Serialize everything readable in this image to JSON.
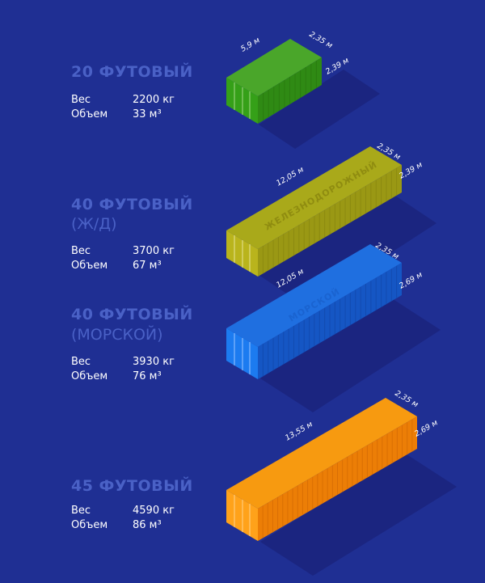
{
  "containers": [
    {
      "title": "20 ФУТОВЫЙ",
      "subtitle": "",
      "weight_label": "Вес",
      "weight_value": "2200 кг",
      "volume_label": "Объем",
      "volume_value": "33 м³",
      "dims": {
        "length": "5,9 м",
        "width": "2,35 м",
        "height": "2,39 м"
      },
      "side_text": "",
      "color": "#4aa62a"
    },
    {
      "title": "40 ФУТОВЫЙ",
      "subtitle": "(Ж/Д)",
      "weight_label": "Вес",
      "weight_value": "3700 кг",
      "volume_label": "Объем",
      "volume_value": "67 м³",
      "dims": {
        "length": "12,05 м",
        "width": "2,35 м",
        "height": "2,39 м"
      },
      "side_text": "ЖЕЛЕЗНОДОРОЖНЫЙ",
      "color": "#a9a91a"
    },
    {
      "title": "40 ФУТОВЫЙ",
      "subtitle": "(МОРСКОЙ)",
      "weight_label": "Вес",
      "weight_value": "3930 кг",
      "volume_label": "Объем",
      "volume_value": "76 м³",
      "dims": {
        "length": "12,05 м",
        "width": "2,35 м",
        "height": "2,69 м"
      },
      "side_text": "МОРСКОЙ",
      "color": "#1f6fe0"
    },
    {
      "title": "45 ФУТОВЫЙ",
      "subtitle": "",
      "weight_label": "Вес",
      "weight_value": "4590 кг",
      "volume_label": "Объем",
      "volume_value": "86 м³",
      "dims": {
        "length": "13,55 м",
        "width": "2,35 м",
        "height": "2,69 м"
      },
      "side_text": "",
      "color": "#f79a10"
    }
  ],
  "colors": {
    "background": "#1f2f93",
    "title": "#4a61c6",
    "shadow": "#1b2580",
    "green_top": "#4aa62a",
    "green_front": "#35a018",
    "green_side": "#2f8a14",
    "olive_top": "#a9a91a",
    "olive_front": "#b9b41c",
    "olive_side": "#9a9814",
    "blue_top": "#1f6fe0",
    "blue_front": "#1c7bf0",
    "blue_side": "#1556c4",
    "orange_top": "#f79a10",
    "orange_front": "#ffa21a",
    "orange_side": "#ec7e06"
  }
}
